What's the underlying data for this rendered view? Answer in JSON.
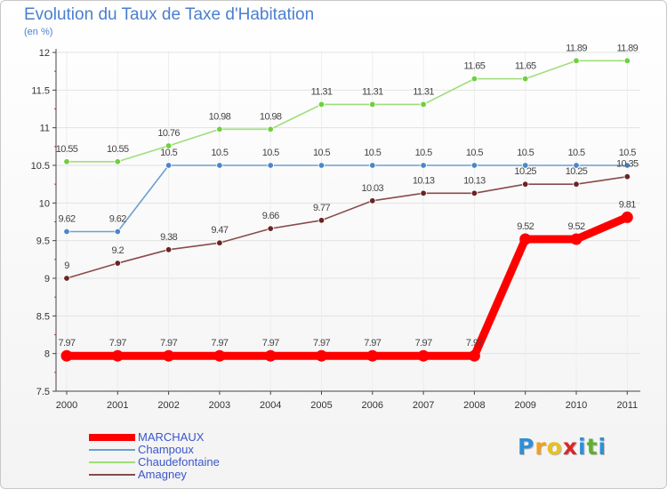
{
  "title": "Evolution du Taux de Taxe d'Habitation",
  "subtitle": "(en %)",
  "brand": {
    "letters": [
      "P",
      "r",
      "o",
      "x",
      "i",
      "t",
      "i"
    ],
    "colors": [
      "#2f8fd8",
      "#f0a020",
      "#e8c020",
      "#d82828",
      "#2f8fd8",
      "#60b030",
      "#2f8fd8"
    ]
  },
  "chart_data": {
    "type": "line",
    "x": [
      "2000",
      "2001",
      "2002",
      "2003",
      "2004",
      "2005",
      "2006",
      "2007",
      "2008",
      "2009",
      "2010",
      "2011"
    ],
    "ylim": [
      7.5,
      12
    ],
    "yticks": [
      "7.5",
      "8",
      "8.5",
      "9",
      "9.5",
      "10",
      "10.5",
      "11",
      "11.5",
      "12"
    ],
    "grid": true,
    "legend_position": "bottom-left",
    "series": [
      {
        "name": "MARCHAUX",
        "color": "#ff0000",
        "bold": true,
        "values": [
          7.97,
          7.97,
          7.97,
          7.97,
          7.97,
          7.97,
          7.97,
          7.97,
          7.97,
          9.52,
          9.52,
          9.81
        ],
        "labels": [
          "7.97",
          "7.97",
          "7.97",
          "7.97",
          "7.97",
          "7.97",
          "7.97",
          "7.97",
          "7.97",
          "9.52",
          "9.52",
          "9.81"
        ]
      },
      {
        "name": "Champoux",
        "color": "#6c9fcf",
        "point_color": "#4a86c8",
        "values": [
          9.62,
          9.62,
          10.5,
          10.5,
          10.5,
          10.5,
          10.5,
          10.5,
          10.5,
          10.5,
          10.5,
          10.5
        ],
        "labels": [
          "9.62",
          "9.62",
          "10.5",
          "10.5",
          "10.5",
          "10.5",
          "10.5",
          "10.5",
          "10.5",
          "10.5",
          "10.5",
          "10.5"
        ]
      },
      {
        "name": "Chaudefontaine",
        "color": "#9ede78",
        "point_color": "#6fcf3f",
        "values": [
          10.55,
          10.55,
          10.76,
          10.98,
          10.98,
          11.31,
          11.31,
          11.31,
          11.65,
          11.65,
          11.89,
          11.89
        ],
        "labels": [
          "10.55",
          "10.55",
          "10.76",
          "10.98",
          "10.98",
          "11.31",
          "11.31",
          "11.31",
          "11.65",
          "11.65",
          "11.89",
          "11.89"
        ]
      },
      {
        "name": "Amagney",
        "color": "#8a4a4a",
        "point_color": "#6a2424",
        "values": [
          9,
          9.2,
          9.38,
          9.47,
          9.66,
          9.77,
          10.03,
          10.13,
          10.13,
          10.25,
          10.25,
          10.35
        ],
        "labels": [
          "9",
          "9.2",
          "9.38",
          "9.47",
          "9.66",
          "9.77",
          "10.03",
          "10.13",
          "10.13",
          "10.25",
          "10.25",
          "10.35"
        ]
      }
    ]
  }
}
